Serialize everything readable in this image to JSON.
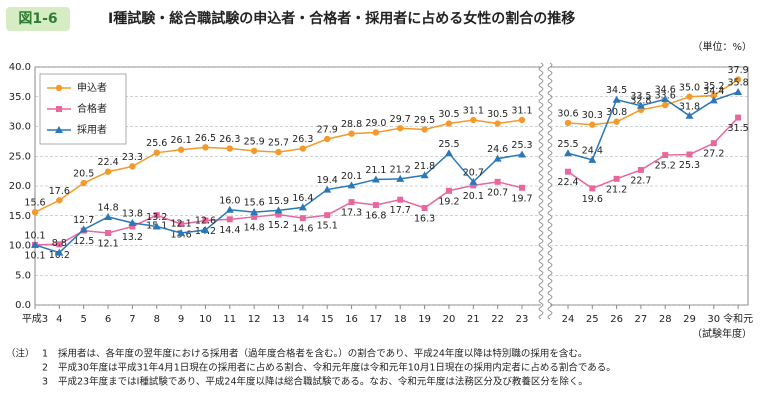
{
  "header": {
    "figure_label": "図1-6",
    "title": "Ⅰ種試験・総合職試験の申込者・合格者・採用者に占める女性の割合の推移"
  },
  "chart_data": {
    "type": "line",
    "unit": "（単位：%）",
    "x_label": "（試験年度）",
    "categories": [
      "平成3",
      "4",
      "5",
      "6",
      "7",
      "8",
      "9",
      "10",
      "11",
      "12",
      "13",
      "14",
      "15",
      "16",
      "17",
      "18",
      "19",
      "20",
      "21",
      "22",
      "23",
      "24",
      "25",
      "26",
      "27",
      "28",
      "29",
      "30",
      "令和元"
    ],
    "ylim": [
      0,
      40
    ],
    "yticks": [
      {
        "value": 0,
        "label": "0.0"
      },
      {
        "value": 5,
        "label": "5.0"
      },
      {
        "value": 10,
        "label": "10.0"
      },
      {
        "value": 15,
        "label": "15.0"
      },
      {
        "value": 20,
        "label": "20.0"
      },
      {
        "value": 25,
        "label": "25.0"
      },
      {
        "value": 30,
        "label": "30.0"
      },
      {
        "value": 35,
        "label": "35.0"
      },
      {
        "value": 40,
        "label": "40.0"
      }
    ],
    "grid": true,
    "legend": "upper left",
    "series": [
      {
        "name": "申込者",
        "color": "#f39a2b",
        "marker": "circle",
        "values": [
          15.6,
          17.6,
          20.5,
          22.4,
          23.3,
          25.6,
          26.1,
          26.5,
          26.3,
          25.9,
          25.7,
          26.3,
          27.9,
          28.8,
          29.0,
          29.7,
          29.5,
          30.5,
          31.1,
          30.5,
          31.1,
          30.6,
          30.3,
          30.8,
          32.8,
          33.6,
          35.0,
          35.2,
          37.9
        ],
        "value_labels": [
          "15.6",
          "17.6",
          "20.5",
          "22.4",
          "23.3",
          "25.6",
          "26.1",
          "26.5",
          "26.3",
          "25.9",
          "25.7",
          "26.3",
          "27.9",
          "28.8",
          "29.0",
          "29.7",
          "29.5",
          "30.5",
          "31.1",
          "30.5",
          "31.1",
          "30.6",
          "30.3",
          "30.8",
          "32.8",
          "33.6",
          "35.0",
          "35.2",
          "37.9"
        ]
      },
      {
        "name": "合格者",
        "color": "#e8679f",
        "marker": "square",
        "values": [
          10.1,
          10.2,
          12.5,
          12.1,
          13.2,
          15.1,
          13.6,
          14.2,
          14.4,
          14.8,
          15.2,
          14.6,
          15.1,
          17.3,
          16.8,
          17.7,
          16.3,
          19.2,
          20.1,
          20.7,
          19.7,
          22.4,
          19.6,
          21.2,
          22.7,
          25.2,
          25.3,
          27.2,
          31.5
        ],
        "value_labels": [
          "10.1",
          "10.2",
          "12.5",
          "12.1",
          "13.2",
          "15.1",
          "13.6",
          "14.2",
          "14.4",
          "14.8",
          "15.2",
          "14.6",
          "15.1",
          "17.3",
          "16.8",
          "17.7",
          "16.3",
          "19.2",
          "20.1",
          "20.7",
          "19.7",
          "22.4",
          "19.6",
          "21.2",
          "22.7",
          "25.2",
          "25.3",
          "27.2",
          "31.5"
        ]
      },
      {
        "name": "採用者",
        "color": "#2a78b8",
        "marker": "triangle",
        "values": [
          10.1,
          8.8,
          12.7,
          14.8,
          13.8,
          13.2,
          12.1,
          12.6,
          16.0,
          15.6,
          15.9,
          16.4,
          19.4,
          20.1,
          21.1,
          21.2,
          21.8,
          25.5,
          20.7,
          24.6,
          25.3,
          25.5,
          24.4,
          34.5,
          33.5,
          34.6,
          31.8,
          34.4,
          35.8
        ],
        "value_labels": [
          "10.1",
          "8.8",
          "12.7",
          "14.8",
          "13.8",
          "13.2",
          "12.1",
          "12.6",
          "16.0",
          "15.6",
          "15.9",
          "16.4",
          "19.4",
          "20.1",
          "21.1",
          "21.2",
          "21.8",
          "25.5",
          "20.7",
          "24.6",
          "25.3",
          "25.5",
          "24.4",
          "34.5",
          "33.5",
          "34.6",
          "31.8",
          "34.4",
          "35.8"
        ]
      }
    ]
  },
  "notes": {
    "label": "（注）",
    "items": [
      {
        "number": "1",
        "text": "採用者は、各年度の翌年度における採用者（過年度合格者を含む。）の割合であり、平成24年度以降は特別職の採用を含む。"
      },
      {
        "number": "2",
        "text": "平成30年度は平成31年4月1日現在の採用者に占める割合、令和元年度は令和元年10月1日現在の採用内定者に占める割合である。"
      },
      {
        "number": "3",
        "text": "平成23年度まではⅠ種試験であり、平成24年度以降は総合職試験である。なお、令和元年度は法務区分及び教養区分を除く。"
      }
    ]
  }
}
